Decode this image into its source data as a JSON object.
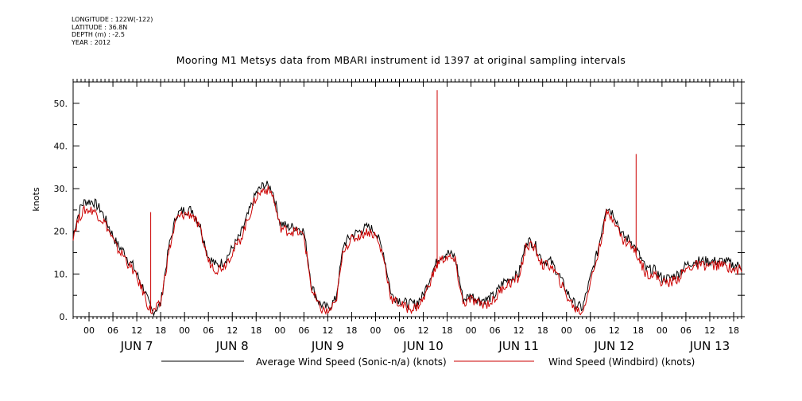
{
  "header": {
    "metadata": [
      "LONGITUDE : 122W(-122)",
      "LATITUDE : 36.8N",
      "DEPTH (m) : -2.5",
      "YEAR : 2012"
    ],
    "title": "Mooring M1 Metsys data from MBARI instrument id 1397 at original sampling intervals"
  },
  "chart_data": {
    "type": "line",
    "title": "Mooring M1 Metsys data from MBARI instrument id 1397 at original sampling intervals",
    "xlabel": "",
    "ylabel": "knots",
    "xlim": [
      "2012-06-06T20:00",
      "2012-06-13T20:00"
    ],
    "ylim": [
      0,
      55
    ],
    "y_ticks": [
      0,
      10,
      20,
      30,
      40,
      50
    ],
    "y_tick_labels": [
      "0.",
      "10.",
      "20.",
      "30.",
      "40.",
      "50."
    ],
    "hour_ticks": [
      "00",
      "06",
      "12",
      "18"
    ],
    "day_labels": [
      "JUN  7",
      "JUN  8",
      "JUN  9",
      "JUN 10",
      "JUN 11",
      "JUN 12",
      "JUN 13"
    ],
    "x_unit": "hours since 2012-06-07 00:00",
    "x_range_hours": [
      -4,
      164
    ],
    "series": [
      {
        "name": "Average Wind Speed (Sonic-n/a) (knots)",
        "color": "#000000",
        "x": [
          -4,
          -3,
          -2,
          -1,
          0,
          1,
          2,
          3,
          4,
          5,
          6,
          7,
          8,
          9,
          10,
          11,
          12,
          13,
          14,
          15,
          16,
          17,
          18,
          20,
          22,
          24,
          26,
          28,
          30,
          32,
          34,
          36,
          38,
          40,
          42,
          44,
          46,
          48,
          50,
          52,
          54,
          56,
          58,
          60,
          62,
          64,
          66,
          68,
          70,
          72,
          74,
          76,
          78,
          80,
          82,
          84,
          86,
          88,
          90,
          92,
          94,
          96,
          98,
          100,
          102,
          104,
          106,
          108,
          110,
          112,
          114,
          116,
          118,
          120,
          122,
          124,
          126,
          128,
          130,
          132,
          134,
          136,
          138,
          140,
          142,
          144,
          146,
          148,
          150,
          152,
          154,
          156,
          158,
          160,
          162,
          164
        ],
        "y": [
          19,
          23,
          26,
          27,
          27,
          27,
          26,
          25,
          23,
          21,
          19,
          17,
          16,
          15,
          13,
          12,
          10,
          8,
          6,
          3,
          1,
          2,
          3,
          16,
          24,
          25,
          25,
          21,
          14,
          12,
          13,
          16,
          19,
          24,
          29,
          31,
          30,
          22,
          21,
          21,
          20,
          7,
          3,
          2,
          4,
          17,
          19,
          20,
          21,
          20,
          15,
          5,
          4,
          3,
          3,
          5,
          10,
          14,
          15,
          14,
          4,
          5,
          4,
          4,
          5,
          8,
          9,
          10,
          18,
          17,
          13,
          13,
          10,
          6,
          3,
          2,
          9,
          16,
          26,
          24,
          19,
          18,
          15,
          11,
          11,
          9,
          9,
          10,
          12,
          13,
          13,
          13,
          13,
          13,
          12,
          12
        ]
      },
      {
        "name": "Wind Speed (Windbird) (knots)",
        "color": "#cc0000",
        "x": [
          -4,
          -3,
          -2,
          -1,
          0,
          1,
          2,
          3,
          4,
          5,
          6,
          7,
          8,
          9,
          10,
          11,
          12,
          13,
          14,
          15,
          16,
          17,
          18,
          20,
          22,
          24,
          26,
          28,
          30,
          32,
          34,
          36,
          38,
          40,
          42,
          44,
          46,
          48,
          50,
          52,
          54,
          56,
          58,
          60,
          62,
          64,
          66,
          68,
          70,
          72,
          74,
          76,
          78,
          80,
          82,
          84,
          86,
          88,
          90,
          92,
          94,
          96,
          98,
          100,
          102,
          104,
          106,
          108,
          110,
          112,
          114,
          116,
          118,
          120,
          122,
          124,
          126,
          128,
          130,
          132,
          134,
          136,
          138,
          140,
          142,
          144,
          146,
          148,
          150,
          152,
          154,
          156,
          158,
          160,
          162,
          164
        ],
        "y": [
          19,
          22,
          24,
          25,
          25,
          25,
          24,
          23,
          22,
          20,
          18,
          16,
          15,
          14,
          12,
          11,
          9,
          7,
          5,
          2,
          1,
          2,
          3,
          15,
          23,
          24,
          24,
          20,
          13,
          11,
          12,
          15,
          18,
          23,
          28,
          30,
          29,
          21,
          20,
          20,
          19,
          6,
          2,
          1,
          3,
          16,
          18,
          19,
          20,
          19,
          14,
          4,
          3,
          2,
          2,
          4,
          9,
          13,
          14,
          13,
          3,
          4,
          3,
          3,
          4,
          7,
          8,
          9,
          17,
          16,
          12,
          12,
          9,
          5,
          2,
          1,
          8,
          15,
          24,
          23,
          18,
          17,
          14,
          10,
          10,
          8,
          8,
          9,
          11,
          12,
          12,
          12,
          12,
          12,
          11,
          11
        ],
        "spikes": [
          {
            "x": 15.5,
            "y": 24.5
          },
          {
            "x": 87.5,
            "y": 53.1
          },
          {
            "x": 137.5,
            "y": 38.1
          }
        ]
      }
    ],
    "legend": "bottom",
    "grid": false
  }
}
